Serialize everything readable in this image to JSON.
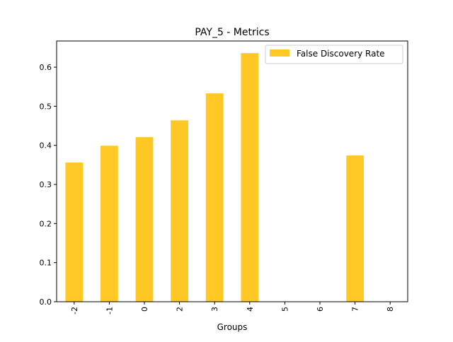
{
  "chart_data": {
    "type": "bar",
    "title": "PAY_5 - Metrics",
    "xlabel": "Groups",
    "ylabel": "",
    "categories": [
      "-2",
      "-1",
      "0",
      "2",
      "3",
      "4",
      "5",
      "6",
      "7",
      "8"
    ],
    "series": [
      {
        "name": "False Discovery Rate",
        "color": "#ffc825",
        "values": [
          0.356,
          0.399,
          0.421,
          0.464,
          0.533,
          0.636,
          0,
          0,
          0.374,
          0
        ]
      }
    ],
    "ylim": [
      0,
      0.667
    ],
    "yticks": [
      "0.0",
      "0.1",
      "0.2",
      "0.3",
      "0.4",
      "0.5",
      "0.6"
    ],
    "grid": false,
    "legend_position": "top-right",
    "xtick_rotation": 90
  }
}
